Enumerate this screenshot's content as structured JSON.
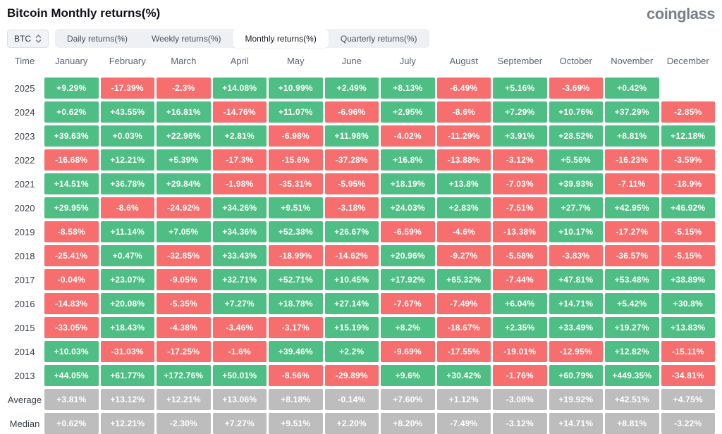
{
  "page": {
    "title": "Bitcoin Monthly returns(%)",
    "logo": "coinglass"
  },
  "controls": {
    "coin_selector": {
      "value": "BTC",
      "icon": "up-down-chevrons-icon"
    },
    "tabs": [
      {
        "label": "Daily returns(%)",
        "active": false
      },
      {
        "label": "Weekly returns(%)",
        "active": false
      },
      {
        "label": "Monthly returns(%)",
        "active": true
      },
      {
        "label": "Quarterly returns(%)",
        "active": false
      }
    ]
  },
  "colors": {
    "positive": "#4EBE84",
    "negative": "#F66E6E",
    "neutral": "#BDBDBD"
  },
  "table": {
    "time_header": "Time",
    "columns": [
      "January",
      "February",
      "March",
      "April",
      "May",
      "June",
      "July",
      "August",
      "September",
      "October",
      "November",
      "December"
    ],
    "rows": [
      {
        "label": "2025",
        "type": "year",
        "values": [
          "+9.29%",
          "-17.39%",
          "-2.3%",
          "+14.08%",
          "+10.99%",
          "+2.49%",
          "+8.13%",
          "-6.49%",
          "+5.16%",
          "-3.69%",
          "+0.42%",
          null
        ]
      },
      {
        "label": "2024",
        "type": "year",
        "values": [
          "+0.62%",
          "+43.55%",
          "+16.81%",
          "-14.76%",
          "+11.07%",
          "-6.96%",
          "+2.95%",
          "-8.6%",
          "+7.29%",
          "+10.76%",
          "+37.29%",
          "-2.85%"
        ]
      },
      {
        "label": "2023",
        "type": "year",
        "values": [
          "+39.63%",
          "+0.03%",
          "+22.96%",
          "+2.81%",
          "-6.98%",
          "+11.98%",
          "-4.02%",
          "-11.29%",
          "+3.91%",
          "+28.52%",
          "+8.81%",
          "+12.18%"
        ]
      },
      {
        "label": "2022",
        "type": "year",
        "values": [
          "-16.68%",
          "+12.21%",
          "+5.39%",
          "-17.3%",
          "-15.6%",
          "-37.28%",
          "+16.8%",
          "-13.88%",
          "-3.12%",
          "+5.56%",
          "-16.23%",
          "-3.59%"
        ]
      },
      {
        "label": "2021",
        "type": "year",
        "values": [
          "+14.51%",
          "+36.78%",
          "+29.84%",
          "-1.98%",
          "-35.31%",
          "-5.95%",
          "+18.19%",
          "+13.8%",
          "-7.03%",
          "+39.93%",
          "-7.11%",
          "-18.9%"
        ]
      },
      {
        "label": "2020",
        "type": "year",
        "values": [
          "+29.95%",
          "-8.6%",
          "-24.92%",
          "+34.26%",
          "+9.51%",
          "-3.18%",
          "+24.03%",
          "+2.83%",
          "-7.51%",
          "+27.7%",
          "+42.95%",
          "+46.92%"
        ]
      },
      {
        "label": "2019",
        "type": "year",
        "values": [
          "-8.58%",
          "+11.14%",
          "+7.05%",
          "+34.36%",
          "+52.38%",
          "+26.67%",
          "-6.59%",
          "-4.6%",
          "-13.38%",
          "+10.17%",
          "-17.27%",
          "-5.15%"
        ]
      },
      {
        "label": "2018",
        "type": "year",
        "values": [
          "-25.41%",
          "+0.47%",
          "-32.85%",
          "+33.43%",
          "-18.99%",
          "-14.62%",
          "+20.96%",
          "-9.27%",
          "-5.58%",
          "-3.83%",
          "-36.57%",
          "-5.15%"
        ]
      },
      {
        "label": "2017",
        "type": "year",
        "values": [
          "-0.04%",
          "+23.07%",
          "-9.05%",
          "+32.71%",
          "+52.71%",
          "+10.45%",
          "+17.92%",
          "+65.32%",
          "-7.44%",
          "+47.81%",
          "+53.48%",
          "+38.89%"
        ]
      },
      {
        "label": "2016",
        "type": "year",
        "values": [
          "-14.83%",
          "+20.08%",
          "-5.35%",
          "+7.27%",
          "+18.78%",
          "+27.14%",
          "-7.67%",
          "-7.49%",
          "+6.04%",
          "+14.71%",
          "+5.42%",
          "+30.8%"
        ]
      },
      {
        "label": "2015",
        "type": "year",
        "values": [
          "-33.05%",
          "+18.43%",
          "-4.38%",
          "-3.46%",
          "-3.17%",
          "+15.19%",
          "+8.2%",
          "-18.67%",
          "+2.35%",
          "+33.49%",
          "+19.27%",
          "+13.83%"
        ]
      },
      {
        "label": "2014",
        "type": "year",
        "values": [
          "+10.03%",
          "-31.03%",
          "-17.25%",
          "-1.6%",
          "+39.46%",
          "+2.2%",
          "-9.69%",
          "-17.55%",
          "-19.01%",
          "-12.95%",
          "+12.82%",
          "-15.11%"
        ]
      },
      {
        "label": "2013",
        "type": "year",
        "values": [
          "+44.05%",
          "+61.77%",
          "+172.76%",
          "+50.01%",
          "-8.56%",
          "-29.89%",
          "+9.6%",
          "+30.42%",
          "-1.76%",
          "+60.79%",
          "+449.35%",
          "-34.81%"
        ]
      },
      {
        "label": "Average",
        "type": "summary",
        "values": [
          "+3.81%",
          "+13.12%",
          "+12.21%",
          "+13.06%",
          "+8.18%",
          "-0.14%",
          "+7.60%",
          "+1.12%",
          "-3.08%",
          "+19.92%",
          "+42.51%",
          "+4.75%"
        ]
      },
      {
        "label": "Median",
        "type": "summary",
        "values": [
          "+0.62%",
          "+12.21%",
          "-2.30%",
          "+7.27%",
          "+9.51%",
          "+2.20%",
          "+8.20%",
          "-7.49%",
          "-3.12%",
          "+14.71%",
          "+8.81%",
          "-3.22%"
        ]
      }
    ]
  }
}
